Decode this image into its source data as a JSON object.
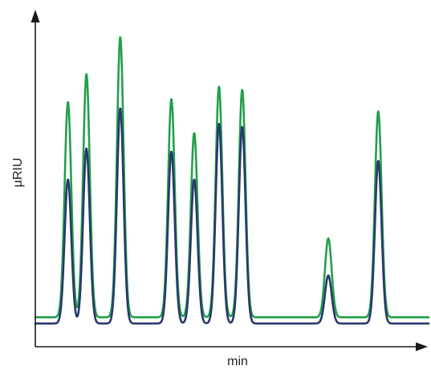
{
  "chart_data": {
    "type": "line",
    "title": "",
    "xlabel": "min",
    "ylabel": "µRIU",
    "xlim": [
      0,
      100
    ],
    "ylim": [
      0,
      100
    ],
    "grid": false,
    "legend": "none",
    "x_ticks_shown": false,
    "y_ticks_shown": false,
    "colors": {
      "series_green": "#22a04a",
      "series_navy": "#28386e",
      "axis": "#1a1a1a"
    },
    "series": [
      {
        "color": "#22a04a",
        "baseline": 9.5,
        "peaks": [
          {
            "x": 8.3,
            "y": 79
          },
          {
            "x": 13.0,
            "y": 88
          },
          {
            "x": 21.6,
            "y": 100
          },
          {
            "x": 34.6,
            "y": 80
          },
          {
            "x": 40.4,
            "y": 69
          },
          {
            "x": 46.7,
            "y": 84
          },
          {
            "x": 52.6,
            "y": 83
          },
          {
            "x": 74.5,
            "y": 35
          },
          {
            "x": 87.2,
            "y": 76
          }
        ]
      },
      {
        "color": "#28386e",
        "baseline": 7.5,
        "peaks": [
          {
            "x": 8.3,
            "y": 54
          },
          {
            "x": 13.0,
            "y": 64
          },
          {
            "x": 21.6,
            "y": 77
          },
          {
            "x": 34.6,
            "y": 63
          },
          {
            "x": 40.4,
            "y": 54
          },
          {
            "x": 46.7,
            "y": 72
          },
          {
            "x": 52.6,
            "y": 71
          },
          {
            "x": 74.5,
            "y": 23
          },
          {
            "x": 87.2,
            "y": 60
          }
        ]
      }
    ]
  }
}
